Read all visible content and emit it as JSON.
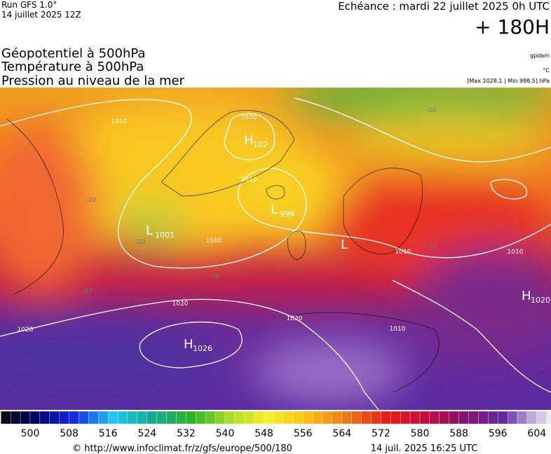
{
  "header": {
    "run": "Run GFS 1.0°",
    "run_date": "14 juillet 2025 12Z",
    "forecast": "Echéance : mardi 22 juillet 2025 0h UTC",
    "lead": "+ 180H"
  },
  "fields": [
    "Géopotentiel à 500hPa",
    "Température à 500hPa",
    "Pression au niveau de la mer"
  ],
  "units": [
    "gpdam",
    "°C",
    "[Max 1028.1 | Min 998.5] hPa"
  ],
  "centers": [
    {
      "type": "L",
      "value": "1001"
    },
    {
      "type": "L",
      "value": "999"
    },
    {
      "type": "L"
    },
    {
      "type": "H",
      "value": "102"
    },
    {
      "type": "H",
      "value": "1026"
    },
    {
      "type": "H",
      "value": "1020"
    }
  ],
  "isobar_labels": [
    "1010",
    "1020",
    "1010",
    "1010",
    "1010",
    "1020",
    "1020",
    "1020",
    "1010",
    "1010"
  ],
  "temperature_labels": [
    "-20",
    "-20",
    "-20",
    "-10",
    "-10",
    "-10"
  ],
  "colorbar": {
    "labels": [
      500,
      508,
      516,
      524,
      532,
      540,
      548,
      556,
      564,
      572,
      580,
      588,
      596,
      604
    ]
  },
  "footer": {
    "source": "© http://www.infoclimat.fr/z/gfs/europe/500/180",
    "date": "14 juil. 2025 16:25 UTC"
  }
}
